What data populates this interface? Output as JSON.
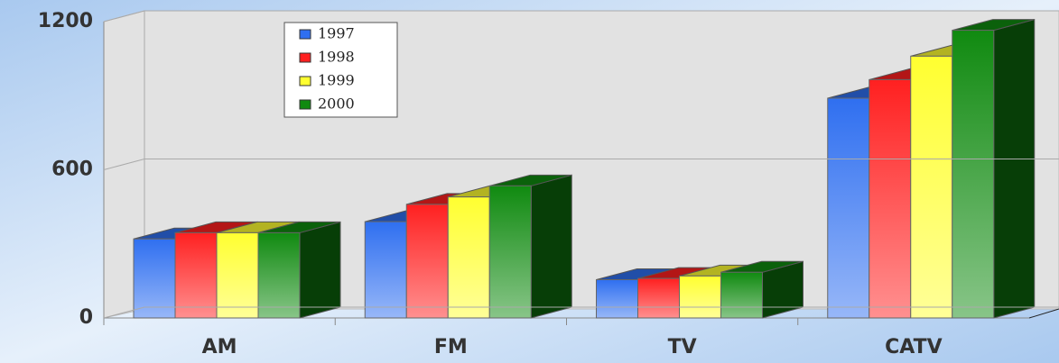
{
  "chart_data": {
    "type": "bar3d",
    "categories": [
      "AM",
      "FM",
      "TV",
      "CATV"
    ],
    "series": [
      {
        "name": "1997",
        "color": "#2f6ff0",
        "values": [
          320,
          390,
          155,
          890
        ]
      },
      {
        "name": "1998",
        "color": "#ff2020",
        "values": [
          345,
          460,
          160,
          965
        ]
      },
      {
        "name": "1999",
        "color": "#ffff30",
        "values": [
          345,
          490,
          170,
          1060
        ]
      },
      {
        "name": "2000",
        "color": "#108a10",
        "values": [
          345,
          535,
          185,
          1165
        ]
      }
    ],
    "ylim": [
      0,
      1200
    ],
    "yticks": [
      0,
      600,
      1200
    ],
    "grid": true,
    "legend": "top-left"
  }
}
